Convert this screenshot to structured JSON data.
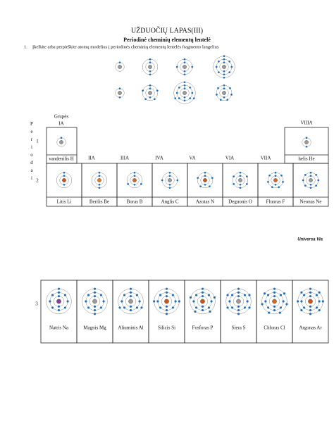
{
  "header": {
    "title": "UŽDUOČIŲ LAPAS(III)",
    "subtitle": "Periodinė cheminių elementų lentelė"
  },
  "task": {
    "number": "1.",
    "text": "Įkelkite arba perpieškite atomų modelius į periodinės cheminių elementų lentelės fragmento langelius"
  },
  "table": {
    "group_heading": "Grupės",
    "groups": [
      "IA",
      "IIA",
      "IIIA",
      "IVA",
      "VA",
      "VIA",
      "VIIA",
      "VIIIA"
    ],
    "period_heading": "Periodai",
    "periods": [
      "1",
      "2",
      "3"
    ],
    "rows": [
      [
        "vandenilis H",
        "helis He"
      ],
      [
        "Litis Li",
        "Berilis Be",
        "Boras B",
        "Anglis C",
        "Azotas N",
        "Deguonis O",
        "Fluoras F",
        "Neonas Ne"
      ],
      [
        "Natris Na",
        "Magnis Mg",
        "Aliuminis Al",
        "Silicis Si",
        "Fosforas P",
        "Siera S",
        "Chloras Cl",
        "Argonas Ar"
      ]
    ]
  },
  "watermark": "Universa Via"
}
